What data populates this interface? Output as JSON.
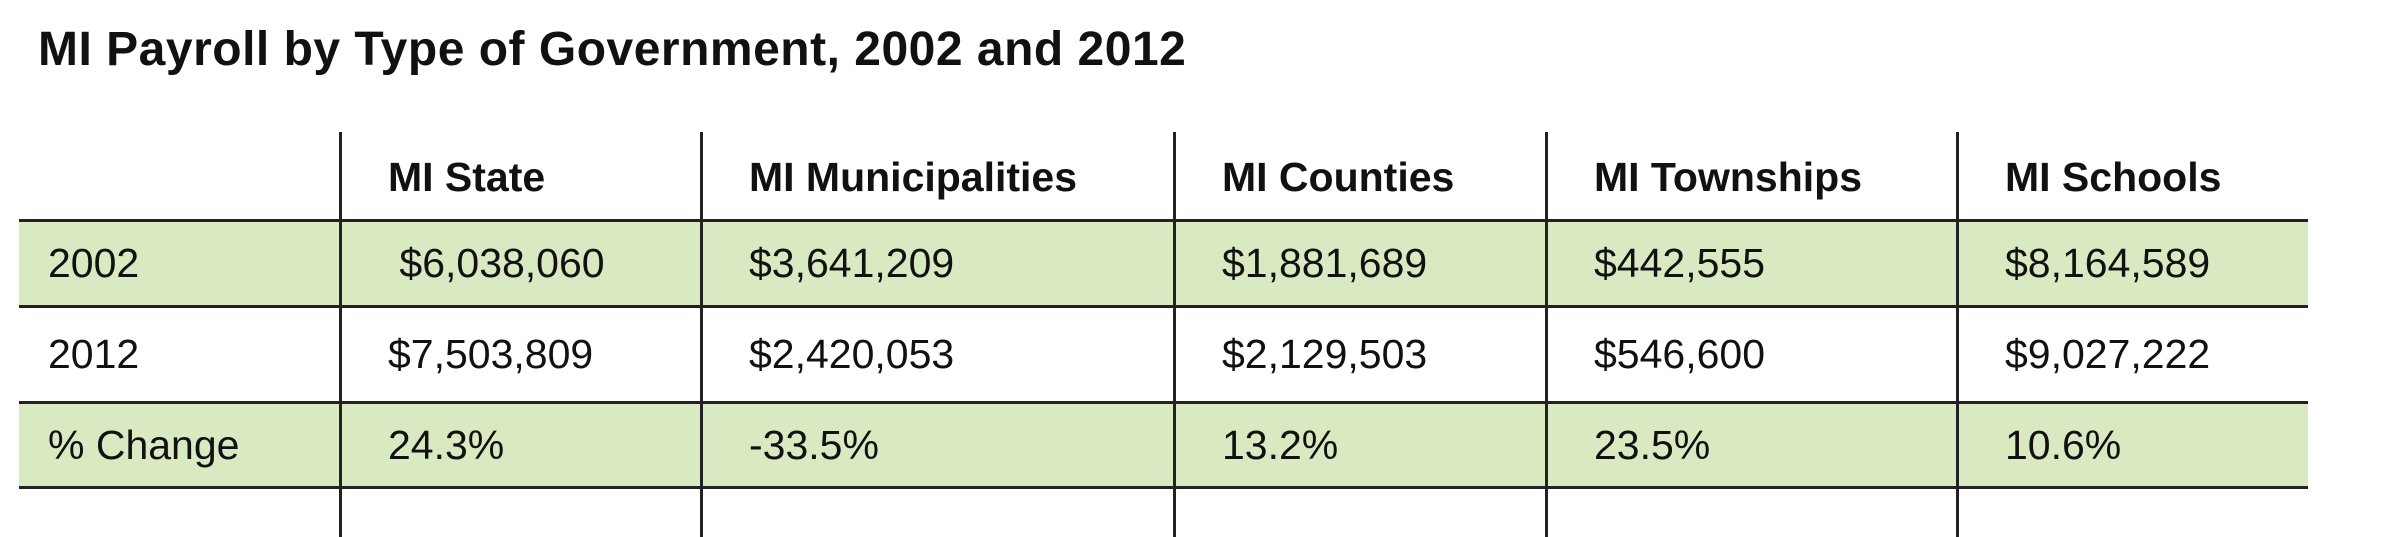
{
  "title": "MI Payroll by Type of Government, 2002 and 2012",
  "table": {
    "columns": [
      "MI State",
      "MI Municipalities",
      "MI Counties",
      "MI Townships",
      "MI Schools"
    ],
    "rows": [
      {
        "label": "2002",
        "cells": [
          " $6,038,060",
          "$3,641,209",
          "$1,881,689",
          "$442,555",
          "$8,164,589"
        ]
      },
      {
        "label": "2012",
        "cells": [
          "$7,503,809",
          "$2,420,053",
          "$2,129,503",
          "$546,600",
          "$9,027,222"
        ]
      },
      {
        "label": "% Change",
        "cells": [
          "24.3%",
          "-33.5%",
          "13.2%",
          "23.5%",
          "10.6%"
        ]
      }
    ]
  }
}
